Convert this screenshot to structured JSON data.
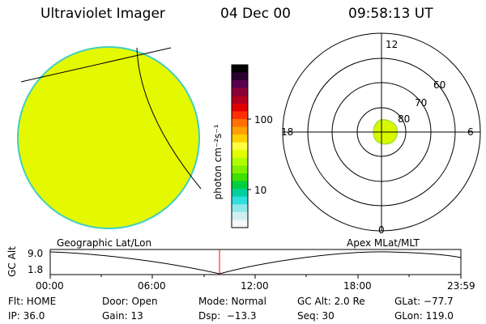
{
  "header": {
    "instrument": "Ultraviolet Imager",
    "date": "04 Dec 00",
    "time": "09:58:13 UT"
  },
  "colorbar": {
    "unit_label": "photon cm⁻²s⁻¹",
    "ticks": [
      "100",
      "10"
    ],
    "colors": [
      "#000000",
      "#2a0030",
      "#5a0050",
      "#8a0038",
      "#b00020",
      "#e00000",
      "#ff3000",
      "#ff7000",
      "#ffa000",
      "#ffd000",
      "#ffff40",
      "#e0ff00",
      "#b0ff00",
      "#80f000",
      "#40e000",
      "#00d040",
      "#00d0a0",
      "#30e0e0",
      "#90e8e8",
      "#d0f0f0",
      "#f4f8f8"
    ]
  },
  "left_panel": {
    "fill_color": "#e4f800",
    "edge_color": "#40d0c0"
  },
  "polar_plot": {
    "labels": {
      "top": "12",
      "bottom": "0",
      "left": "18",
      "right": "6"
    },
    "lat_labels": [
      "60",
      "70",
      "80"
    ]
  },
  "timeline": {
    "ylabel": "GC Alt",
    "y_ticks": [
      "9.0",
      "1.8"
    ],
    "x_ticks": [
      "00:00",
      "06:00",
      "12:00",
      "18:00",
      "23:59"
    ],
    "left_caption": "Geographic Lat/Lon",
    "right_caption": "Apex MLat/MLT",
    "current_marker_color": "#ff0000"
  },
  "status": {
    "flt": "Flt: HOME",
    "door": "Door: Open",
    "mode": "Mode: Normal",
    "gc_alt": "GC Alt: 2.0 Re",
    "glat": "GLat: −77.7",
    "ip": "IP: 36.0",
    "gain": "Gain: 13",
    "dsp": "Dsp:  −13.3",
    "seq": "Seq: 30",
    "glon": "GLon: 119.0"
  }
}
